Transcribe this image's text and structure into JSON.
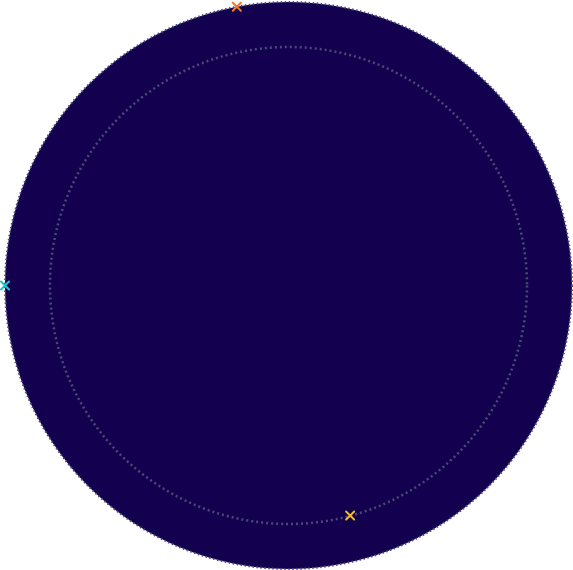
{
  "board": {
    "shape": "circle",
    "background": "#13004f",
    "ring_color": "#4a4a78",
    "outer_ring_style": "dotted",
    "inner_ring_style": "dotted"
  },
  "markers": [
    {
      "name": "orange-marker",
      "glyph": "×",
      "color": "#f47a1f",
      "angle_deg": -100.5,
      "radius_fraction": 1.0
    },
    {
      "name": "cyan-marker",
      "glyph": "×",
      "color": "#1fc4cf",
      "angle_deg": 180.0,
      "radius_fraction": 1.0
    },
    {
      "name": "yellow-marker",
      "glyph": "×",
      "color": "#f4be2a",
      "angle_deg": 75.0,
      "radius_fraction": 0.84
    }
  ]
}
